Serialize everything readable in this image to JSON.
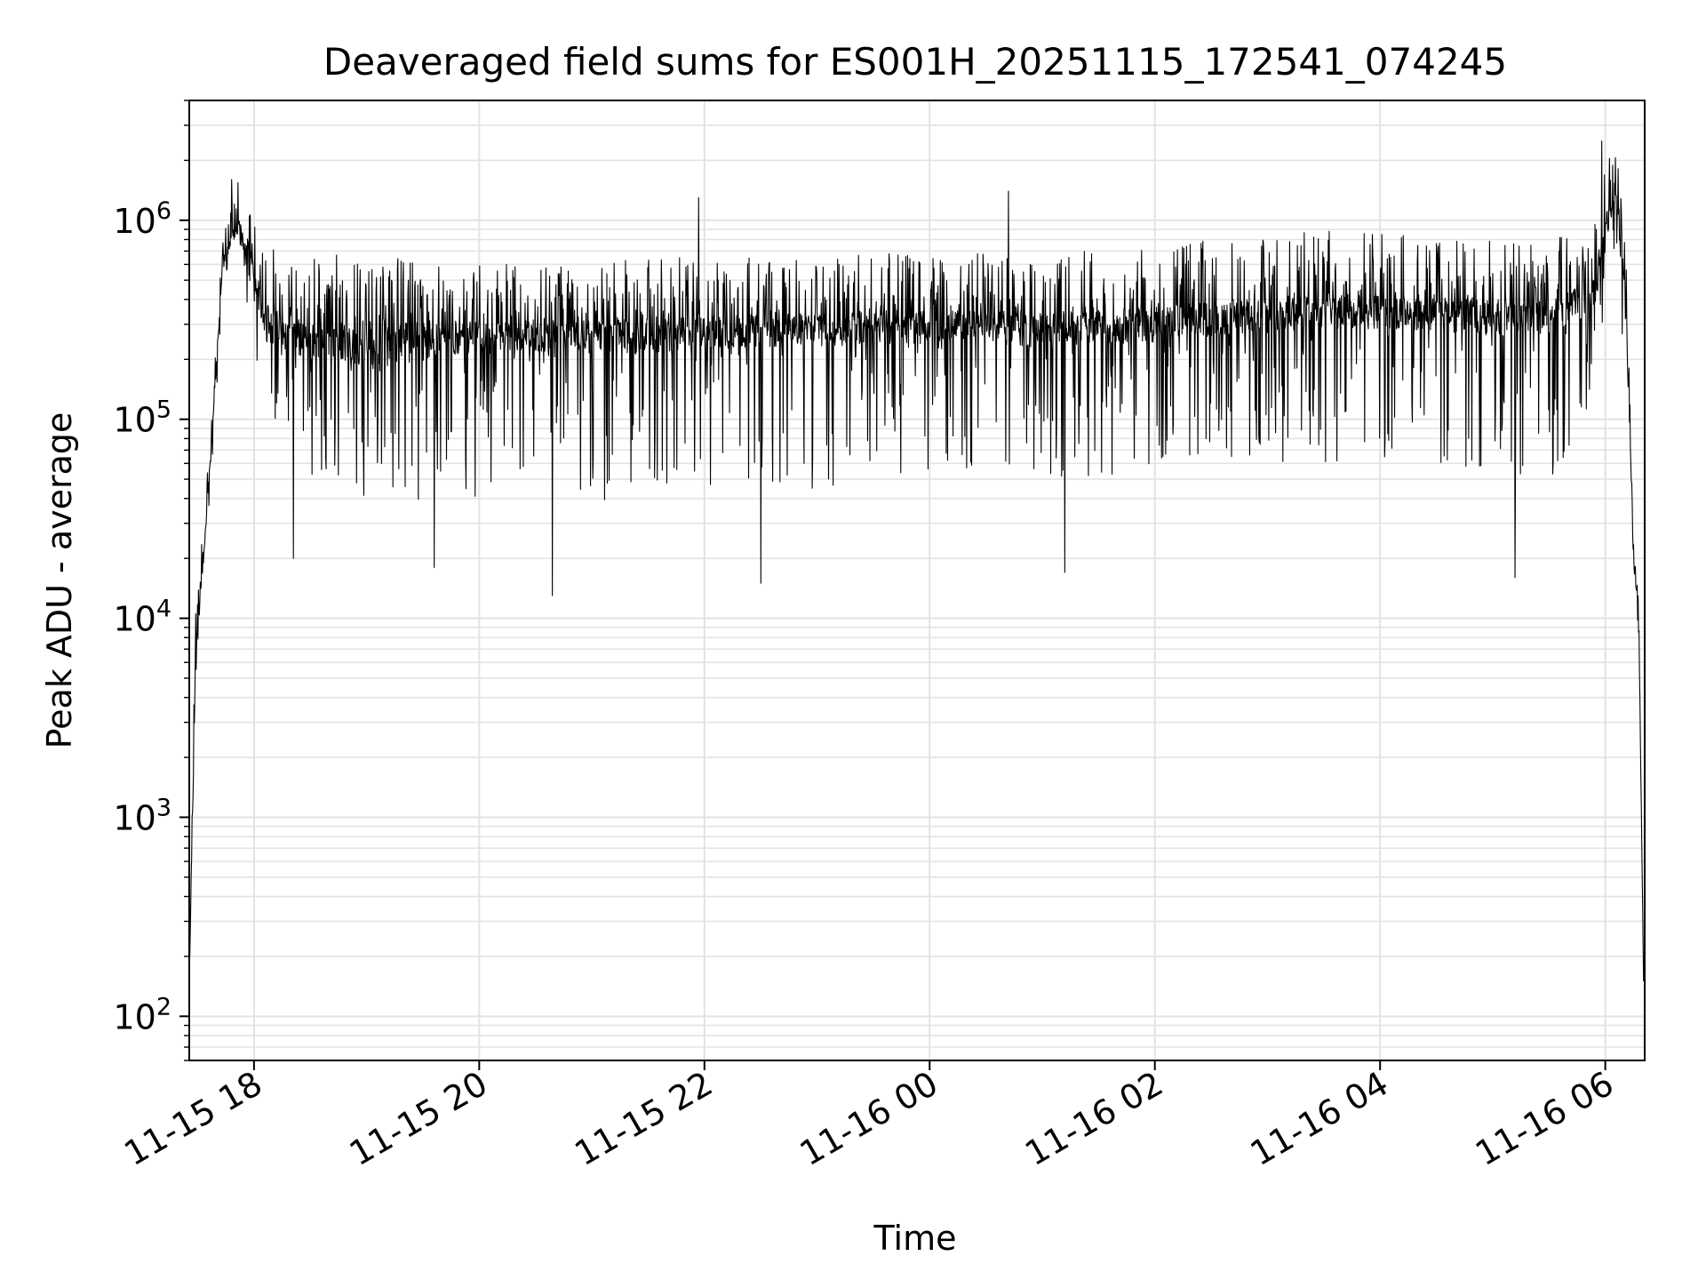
{
  "chart_data": {
    "type": "line",
    "title": "Deaveraged field sums for ES001H_20251115_172541_074245",
    "xlabel": "Time",
    "ylabel": "Peak ADU - average",
    "yscale": "log",
    "ylim": [
      60,
      4000000
    ],
    "xlim_hours": [
      17.425,
      30.35
    ],
    "grid": true,
    "line_color": "#000000",
    "grid_color": "#e3e3e3",
    "x_ticks": [
      {
        "label": "11-15 18",
        "hour": 18
      },
      {
        "label": "11-15 20",
        "hour": 20
      },
      {
        "label": "11-15 22",
        "hour": 22
      },
      {
        "label": "11-16 00",
        "hour": 24
      },
      {
        "label": "11-16 02",
        "hour": 26
      },
      {
        "label": "11-16 04",
        "hour": 28
      },
      {
        "label": "11-16 06",
        "hour": 30
      }
    ],
    "y_ticks": [
      {
        "base": "10",
        "exp": "2",
        "value": 100
      },
      {
        "base": "10",
        "exp": "3",
        "value": 1000
      },
      {
        "base": "10",
        "exp": "4",
        "value": 10000
      },
      {
        "base": "10",
        "exp": "5",
        "value": 100000
      },
      {
        "base": "10",
        "exp": "6",
        "value": 1000000
      }
    ],
    "series": [
      {
        "name": "deaveraged field sum",
        "envelope": [
          {
            "hour": 17.43,
            "median": 200,
            "low": 200,
            "high": 200
          },
          {
            "hour": 17.48,
            "median": 6000,
            "low": 3000,
            "high": 12000
          },
          {
            "hour": 17.55,
            "median": 20000,
            "low": 14000,
            "high": 30000
          },
          {
            "hour": 17.62,
            "median": 70000,
            "low": 40000,
            "high": 95000
          },
          {
            "hour": 17.72,
            "median": 600000,
            "low": 450000,
            "high": 800000
          },
          {
            "hour": 17.85,
            "median": 950000,
            "low": 700000,
            "high": 1600000
          },
          {
            "hour": 17.95,
            "median": 700000,
            "low": 300000,
            "high": 1300000
          },
          {
            "hour": 18.1,
            "median": 300000,
            "low": 90000,
            "high": 750000
          },
          {
            "hour": 18.5,
            "median": 250000,
            "low": 50000,
            "high": 700000
          },
          {
            "hour": 19.0,
            "median": 220000,
            "low": 35000,
            "high": 650000
          },
          {
            "hour": 19.5,
            "median": 250000,
            "low": 40000,
            "high": 650000
          },
          {
            "hour": 20.0,
            "median": 260000,
            "low": 40000,
            "high": 600000
          },
          {
            "hour": 20.5,
            "median": 260000,
            "low": 40000,
            "high": 600000
          },
          {
            "hour": 21.0,
            "median": 260000,
            "low": 35000,
            "high": 600000
          },
          {
            "hour": 21.5,
            "median": 260000,
            "low": 40000,
            "high": 650000
          },
          {
            "hour": 22.0,
            "median": 270000,
            "low": 40000,
            "high": 650000
          },
          {
            "hour": 22.5,
            "median": 280000,
            "low": 45000,
            "high": 650000
          },
          {
            "hour": 23.0,
            "median": 280000,
            "low": 45000,
            "high": 650000
          },
          {
            "hour": 23.5,
            "median": 290000,
            "low": 50000,
            "high": 700000
          },
          {
            "hour": 24.0,
            "median": 290000,
            "low": 50000,
            "high": 700000
          },
          {
            "hour": 24.5,
            "median": 290000,
            "low": 50000,
            "high": 700000
          },
          {
            "hour": 25.0,
            "median": 280000,
            "low": 50000,
            "high": 700000
          },
          {
            "hour": 25.5,
            "median": 290000,
            "low": 50000,
            "high": 700000
          },
          {
            "hour": 26.0,
            "median": 300000,
            "low": 55000,
            "high": 750000
          },
          {
            "hour": 26.5,
            "median": 320000,
            "low": 60000,
            "high": 800000
          },
          {
            "hour": 27.0,
            "median": 340000,
            "low": 60000,
            "high": 850000
          },
          {
            "hour": 27.5,
            "median": 350000,
            "low": 60000,
            "high": 900000
          },
          {
            "hour": 28.0,
            "median": 350000,
            "low": 60000,
            "high": 900000
          },
          {
            "hour": 28.5,
            "median": 340000,
            "low": 60000,
            "high": 850000
          },
          {
            "hour": 29.0,
            "median": 320000,
            "low": 50000,
            "high": 800000
          },
          {
            "hour": 29.5,
            "median": 330000,
            "low": 50000,
            "high": 800000
          },
          {
            "hour": 29.9,
            "median": 400000,
            "low": 100000,
            "high": 900000
          },
          {
            "hour": 30.0,
            "median": 900000,
            "low": 400000,
            "high": 2000000
          },
          {
            "hour": 30.1,
            "median": 1200000,
            "low": 600000,
            "high": 2200000
          },
          {
            "hour": 30.18,
            "median": 400000,
            "low": 150000,
            "high": 800000
          },
          {
            "hour": 30.25,
            "median": 25000,
            "low": 20000,
            "high": 35000
          },
          {
            "hour": 30.3,
            "median": 8000,
            "low": 5000,
            "high": 12000
          },
          {
            "hour": 30.34,
            "median": 150,
            "low": 150,
            "high": 150
          }
        ],
        "notable_points": [
          {
            "hour": 17.8,
            "value": 1600000
          },
          {
            "hour": 18.35,
            "value": 20000
          },
          {
            "hour": 19.6,
            "value": 18000
          },
          {
            "hour": 20.65,
            "value": 13000
          },
          {
            "hour": 21.95,
            "value": 1300000
          },
          {
            "hour": 22.5,
            "value": 15000
          },
          {
            "hour": 24.7,
            "value": 1400000
          },
          {
            "hour": 25.2,
            "value": 17000
          },
          {
            "hour": 29.2,
            "value": 16000
          },
          {
            "hour": 29.97,
            "value": 2500000
          }
        ]
      }
    ]
  }
}
